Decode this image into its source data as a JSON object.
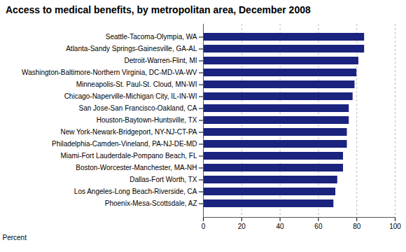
{
  "chart_data": {
    "type": "bar",
    "orientation": "horizontal",
    "title": "Access to medical benefits, by metropolitan area, December 2008",
    "categories": [
      "Phoenix-Mesa-Scottsdale, AZ",
      "Los Angeles-Long Beach-Riverside, CA",
      "Dallas-Fort Worth, TX",
      "Boston-Worcester-Manchester, MA-NH",
      "Miami-Fort Lauderdale-Pompano Beach, FL",
      "Philadelphia-Camden-Vineland, PA-NJ-DE-MD",
      "New York-Newark-Bridgeport, NY-NJ-CT-PA",
      "Houston-Baytown-Huntsville, TX",
      "San Jose-San Francisco-Oakland, CA",
      "Chicago-Naperville-Michigan City, IL-IN-WI",
      "Minneapolis-St. Paul-St. Cloud, MN-WI",
      "Washington-Baltimore-Northern Virginia, DC-MD-VA-WV",
      "Detroit-Warren-Flint, MI",
      "Atlanta-Sandy Springs-Gainesville, GA-AL",
      "Seattle-Tacoma-Olympia, WA"
    ],
    "values": [
      68,
      69,
      70,
      73,
      73,
      75,
      75,
      76,
      76,
      78,
      79,
      80,
      81,
      84,
      84
    ],
    "color": "#1a237e",
    "xlabel": "Percent",
    "xlim": [
      0,
      100
    ],
    "xticks": [
      0,
      20,
      40,
      60,
      80,
      100
    ],
    "grid": true
  }
}
